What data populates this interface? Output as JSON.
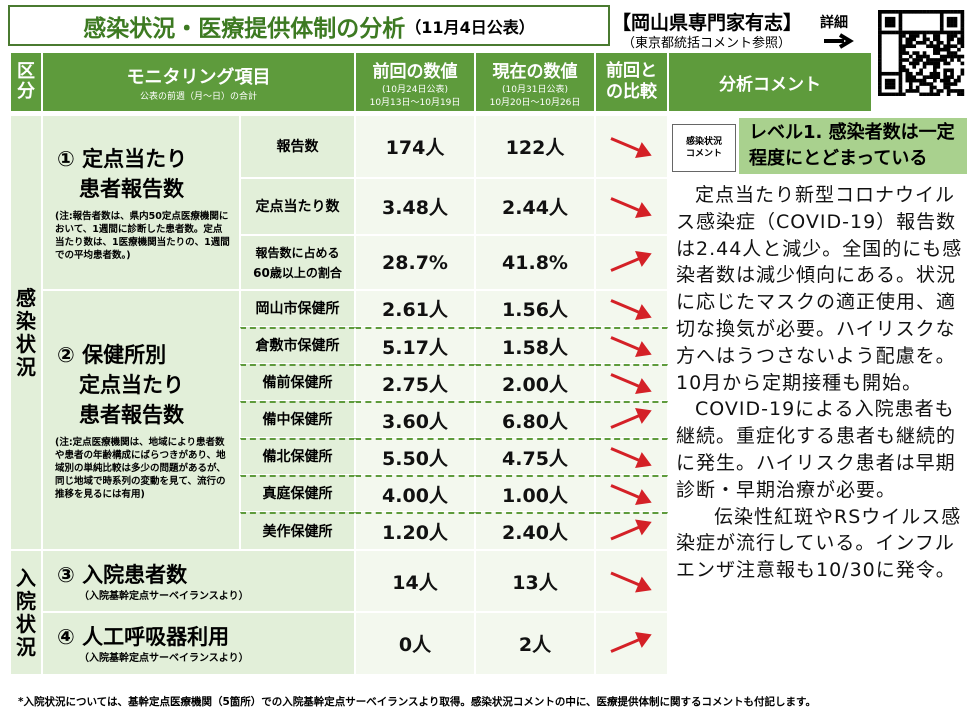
{
  "header": {
    "title": "感染状況・医療提供体制の分析",
    "date": "（11月4日公表）",
    "source": "【岡山県専門家有志】",
    "source_note": "（東京都統括コメント参照）",
    "detail": "詳細"
  },
  "table": {
    "headers": {
      "category": "区分",
      "item": "モニタリング項目",
      "item_note": "公表の前週（月～日）の合計",
      "previous": "前回の数値",
      "previous_date": "(10月24日公表)",
      "previous_period": "10月13日～10月19日",
      "current": "現在の数値",
      "current_date": "(10月31日公表)",
      "current_period": "10月20日～10月26日",
      "compare": "前回との比較",
      "comment": "分析コメント"
    },
    "categories": [
      "感染状況",
      "入院状況"
    ],
    "groups": [
      {
        "title_lines": [
          "① 定点当たり",
          "患者報告数"
        ],
        "note": "(注:報告者数は、県内50定点医療機関において、1週間に診断した患者数。定点当たり数は、1医療機関当たりの、1週間での平均患者数。)"
      },
      {
        "title_lines": [
          "② 保健所別",
          "定点当たり",
          "患者報告数"
        ],
        "note": "(注:定点医療機関は、地域により患者数や患者の年齢構成にばらつきがあり、地域別の単純比較は多少の問題があるが、同じ地域で時系列の変動を見て、流行の推移を見るには有用)"
      },
      {
        "title_lines": [
          "③ 入院患者数"
        ],
        "note": "（入院基幹定点サーベイランスより）"
      },
      {
        "title_lines": [
          "④ 人工呼吸器利用"
        ],
        "note": "（入院基幹定点サーベイランスより）"
      }
    ],
    "rows": [
      {
        "item": "報告数",
        "previous": "174人",
        "current": "122人"
      },
      {
        "item": "定点当たり数",
        "previous": "3.48人",
        "current": "2.44人"
      },
      {
        "item": "報告数に占める60歳以上の割合",
        "previous": "28.7%",
        "current": "41.8%"
      },
      {
        "item": "岡山市保健所",
        "previous": "2.61人",
        "current": "1.56人"
      },
      {
        "item": "倉敷市保健所",
        "previous": "5.17人",
        "current": "1.58人"
      },
      {
        "item": "備前保健所",
        "previous": "2.75人",
        "current": "2.00人"
      },
      {
        "item": "備中保健所",
        "previous": "3.60人",
        "current": "6.80人"
      },
      {
        "item": "備北保健所",
        "previous": "5.50人",
        "current": "4.75人"
      },
      {
        "item": "真庭保健所",
        "previous": "4.00人",
        "current": "1.00人"
      },
      {
        "item": "美作保健所",
        "previous": "1.20人",
        "current": "2.40人"
      },
      {
        "previous": "14人",
        "current": "13人"
      },
      {
        "previous": "0人",
        "current": "2人"
      }
    ]
  },
  "comment": {
    "label": "感染状況コメント",
    "level": "レベル1. 感染者数は一定程度にとどまっている",
    "paragraphs": [
      "定点当たり新型コロナウイルス感染症（COVID-19）報告数は2.44人と減少。全国的にも感染者数は減少傾向にある。状況に応じたマスクの適正使用、適切な換気が必要。ハイリスクな方へはうつさないよう配慮を。10月から定期接種も開始。",
      "COVID-19による入院患者も継続。重症化する患者も継続的に発生。ハイリスク患者は早期診断・早期治療が必要。",
      "伝染性紅斑やRSウイルス感染症が流行している。インフルエンザ注意報も10/30に発令。"
    ]
  },
  "footer": "*入院状況については、基幹定点医療機関（5箇所）での入院基幹定点サーベイランスより取得。感染状況コメントの中に、医療提供体制に関するコメントも付記します。"
}
